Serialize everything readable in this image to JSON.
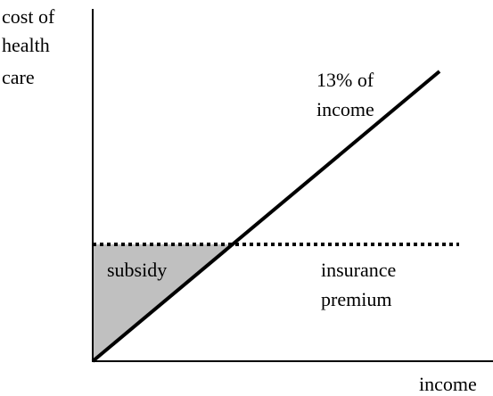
{
  "y_axis_label": [
    "cost of",
    "health",
    "care"
  ],
  "x_axis_label": "income",
  "income_line_label": [
    "13% of",
    "income"
  ],
  "shaded_region_label": "subsidy",
  "dotted_line_label": [
    "insurance",
    "premium"
  ]
}
